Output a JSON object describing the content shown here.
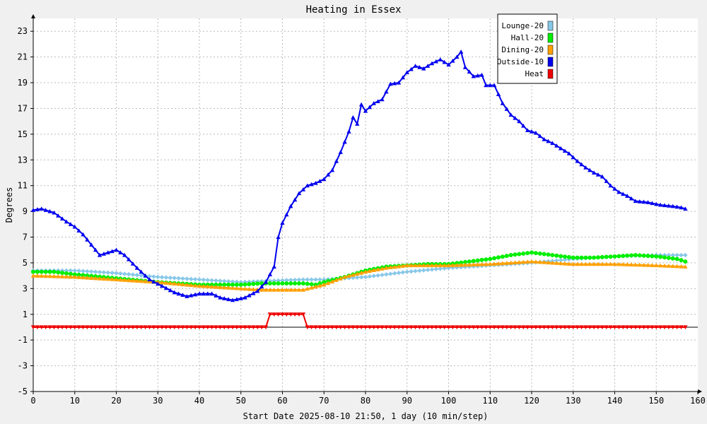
{
  "chart_data": {
    "type": "line",
    "title": "Heating in Essex",
    "xlabel": "Start Date 2025-08-10 21:50, 1 day (10 min/step)",
    "ylabel": "Degrees",
    "xlim": [
      0,
      160
    ],
    "ylim": [
      -5,
      24
    ],
    "xticks": [
      0,
      10,
      20,
      30,
      40,
      50,
      60,
      70,
      80,
      90,
      100,
      110,
      120,
      130,
      140,
      150,
      160
    ],
    "yticks": [
      -5,
      -3,
      -1,
      1,
      3,
      5,
      7,
      9,
      11,
      13,
      15,
      17,
      19,
      21,
      23
    ],
    "grid": true,
    "legend_position": "top-right",
    "series": [
      {
        "name": "Lounge-20",
        "color": "#88c8e8",
        "marker": "diamond",
        "points": [
          [
            0,
            4.4
          ],
          [
            10,
            4.4
          ],
          [
            20,
            4.2
          ],
          [
            30,
            3.9
          ],
          [
            40,
            3.7
          ],
          [
            50,
            3.5
          ],
          [
            57,
            3.6
          ],
          [
            65,
            3.7
          ],
          [
            70,
            3.7
          ],
          [
            80,
            3.9
          ],
          [
            90,
            4.3
          ],
          [
            100,
            4.6
          ],
          [
            110,
            4.8
          ],
          [
            120,
            5.0
          ],
          [
            130,
            5.3
          ],
          [
            140,
            5.5
          ],
          [
            150,
            5.6
          ],
          [
            157,
            5.6
          ]
        ]
      },
      {
        "name": "Hall-20",
        "color": "#00ee00",
        "marker": "circle",
        "points": [
          [
            0,
            4.3
          ],
          [
            5,
            4.3
          ],
          [
            10,
            4.1
          ],
          [
            20,
            3.8
          ],
          [
            30,
            3.5
          ],
          [
            40,
            3.3
          ],
          [
            50,
            3.3
          ],
          [
            55,
            3.4
          ],
          [
            60,
            3.4
          ],
          [
            65,
            3.4
          ],
          [
            68,
            3.3
          ],
          [
            70,
            3.5
          ],
          [
            75,
            3.9
          ],
          [
            80,
            4.4
          ],
          [
            85,
            4.7
          ],
          [
            90,
            4.8
          ],
          [
            95,
            4.9
          ],
          [
            100,
            4.9
          ],
          [
            105,
            5.1
          ],
          [
            110,
            5.3
          ],
          [
            115,
            5.6
          ],
          [
            120,
            5.8
          ],
          [
            125,
            5.6
          ],
          [
            130,
            5.4
          ],
          [
            135,
            5.4
          ],
          [
            140,
            5.5
          ],
          [
            145,
            5.6
          ],
          [
            150,
            5.5
          ],
          [
            155,
            5.3
          ],
          [
            157,
            5.1
          ]
        ]
      },
      {
        "name": "Dining-20",
        "color": "#ffa000",
        "marker": "triangle-up",
        "points": [
          [
            0,
            4.0
          ],
          [
            10,
            3.9
          ],
          [
            20,
            3.7
          ],
          [
            30,
            3.5
          ],
          [
            40,
            3.2
          ],
          [
            50,
            3.0
          ],
          [
            55,
            2.9
          ],
          [
            60,
            2.9
          ],
          [
            65,
            2.9
          ],
          [
            70,
            3.3
          ],
          [
            75,
            3.9
          ],
          [
            80,
            4.3
          ],
          [
            85,
            4.6
          ],
          [
            90,
            4.8
          ],
          [
            100,
            4.8
          ],
          [
            110,
            4.9
          ],
          [
            115,
            5.0
          ],
          [
            120,
            5.1
          ],
          [
            125,
            5.0
          ],
          [
            130,
            4.9
          ],
          [
            140,
            4.9
          ],
          [
            150,
            4.8
          ],
          [
            157,
            4.7
          ]
        ]
      },
      {
        "name": "Outside-10",
        "color": "#0000ee",
        "marker": "triangle-up",
        "points": [
          [
            0,
            9.1
          ],
          [
            2,
            9.2
          ],
          [
            5,
            8.9
          ],
          [
            8,
            8.2
          ],
          [
            10,
            7.8
          ],
          [
            12,
            7.2
          ],
          [
            14,
            6.4
          ],
          [
            16,
            5.6
          ],
          [
            18,
            5.8
          ],
          [
            20,
            6.0
          ],
          [
            22,
            5.6
          ],
          [
            25,
            4.6
          ],
          [
            28,
            3.7
          ],
          [
            31,
            3.2
          ],
          [
            34,
            2.7
          ],
          [
            37,
            2.4
          ],
          [
            40,
            2.6
          ],
          [
            43,
            2.6
          ],
          [
            45,
            2.3
          ],
          [
            48,
            2.1
          ],
          [
            51,
            2.3
          ],
          [
            54,
            2.8
          ],
          [
            56,
            3.5
          ],
          [
            58,
            4.7
          ],
          [
            59,
            7.0
          ],
          [
            60,
            8.1
          ],
          [
            62,
            9.4
          ],
          [
            64,
            10.4
          ],
          [
            66,
            11.0
          ],
          [
            68,
            11.2
          ],
          [
            70,
            11.5
          ],
          [
            72,
            12.2
          ],
          [
            74,
            13.6
          ],
          [
            76,
            15.2
          ],
          [
            77,
            16.3
          ],
          [
            78,
            15.8
          ],
          [
            79,
            17.3
          ],
          [
            80,
            16.8
          ],
          [
            82,
            17.4
          ],
          [
            84,
            17.7
          ],
          [
            86,
            18.9
          ],
          [
            88,
            19.0
          ],
          [
            90,
            19.8
          ],
          [
            92,
            20.3
          ],
          [
            94,
            20.1
          ],
          [
            96,
            20.5
          ],
          [
            98,
            20.8
          ],
          [
            100,
            20.4
          ],
          [
            102,
            21.0
          ],
          [
            103,
            21.4
          ],
          [
            104,
            20.2
          ],
          [
            106,
            19.5
          ],
          [
            108,
            19.6
          ],
          [
            109,
            18.8
          ],
          [
            111,
            18.8
          ],
          [
            113,
            17.4
          ],
          [
            115,
            16.5
          ],
          [
            117,
            16.0
          ],
          [
            119,
            15.3
          ],
          [
            121,
            15.1
          ],
          [
            123,
            14.6
          ],
          [
            125,
            14.3
          ],
          [
            127,
            13.9
          ],
          [
            129,
            13.5
          ],
          [
            131,
            12.9
          ],
          [
            133,
            12.4
          ],
          [
            135,
            12.0
          ],
          [
            137,
            11.7
          ],
          [
            139,
            11.0
          ],
          [
            141,
            10.5
          ],
          [
            143,
            10.2
          ],
          [
            145,
            9.8
          ],
          [
            148,
            9.7
          ],
          [
            151,
            9.5
          ],
          [
            154,
            9.4
          ],
          [
            156,
            9.3
          ],
          [
            157,
            9.2
          ]
        ]
      },
      {
        "name": "Heat",
        "color": "#ee0000",
        "marker": "triangle-down",
        "points": [
          [
            0,
            0
          ],
          [
            56,
            0
          ],
          [
            57,
            1
          ],
          [
            65,
            1
          ],
          [
            66,
            0
          ],
          [
            157,
            0
          ]
        ]
      }
    ]
  }
}
